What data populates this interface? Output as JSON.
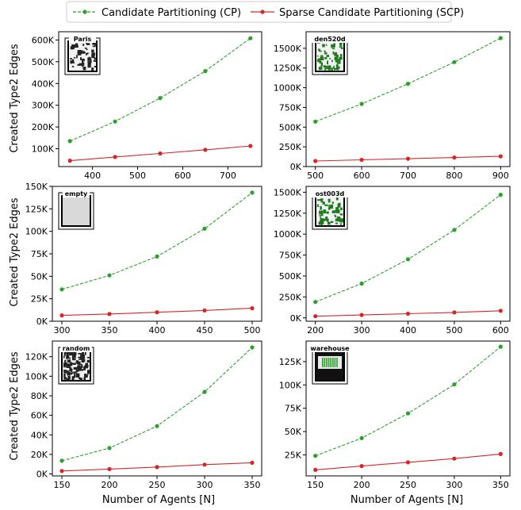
{
  "legend": {
    "placement": "top-center",
    "entries": [
      {
        "label": "Candidate Partitioning (CP)",
        "color": "#2ca02c",
        "style": "dashed"
      },
      {
        "label": "Sparse Candidate Partitioning (SCP)",
        "color": "#d62728",
        "style": "solid"
      }
    ]
  },
  "shared_ylabel": "Created Type2 Edges",
  "shared_xlabel": "Number of Agents [N]",
  "chart_data": [
    {
      "type": "line",
      "map_label": "Paris",
      "x": [
        350,
        450,
        550,
        650,
        750
      ],
      "xticks": [
        400,
        500,
        600,
        700
      ],
      "xlim": [
        325,
        775
      ],
      "yticks": [
        100000,
        200000,
        300000,
        400000,
        500000,
        600000
      ],
      "ytick_labels": [
        "100K",
        "200K",
        "300K",
        "400K",
        "500K",
        "600K"
      ],
      "ylim": [
        18000,
        638000
      ],
      "series": [
        {
          "name": "Candidate Partitioning (CP)",
          "values": [
            135000,
            225000,
            333000,
            457000,
            608000
          ]
        },
        {
          "name": "Sparse Candidate Partitioning (SCP)",
          "values": [
            45000,
            62000,
            78000,
            95000,
            113000
          ]
        }
      ]
    },
    {
      "type": "line",
      "map_label": "den520d",
      "x": [
        500,
        600,
        700,
        800,
        900
      ],
      "xticks": [
        500,
        600,
        700,
        800,
        900
      ],
      "xlim": [
        480,
        920
      ],
      "yticks": [
        0,
        250000,
        500000,
        750000,
        1000000,
        1250000,
        1500000
      ],
      "ytick_labels": [
        "0K",
        "250K",
        "500K",
        "750K",
        "1000K",
        "1250K",
        "1500K"
      ],
      "ylim": [
        0,
        1710000
      ],
      "series": [
        {
          "name": "Candidate Partitioning (CP)",
          "values": [
            570000,
            795000,
            1050000,
            1325000,
            1630000
          ]
        },
        {
          "name": "Sparse Candidate Partitioning (SCP)",
          "values": [
            70000,
            85000,
            100000,
            115000,
            130000
          ]
        }
      ]
    },
    {
      "type": "line",
      "map_label": "empty",
      "x": [
        300,
        350,
        400,
        450,
        500
      ],
      "xticks": [
        300,
        350,
        400,
        450,
        500
      ],
      "xlim": [
        290,
        510
      ],
      "yticks": [
        0,
        25000,
        50000,
        75000,
        100000,
        125000,
        150000
      ],
      "ytick_labels": [
        "0K",
        "25K",
        "50K",
        "75K",
        "100K",
        "125K",
        "150K"
      ],
      "ylim": [
        0,
        150000
      ],
      "series": [
        {
          "name": "Candidate Partitioning (CP)",
          "values": [
            35500,
            51000,
            72000,
            103000,
            143000
          ]
        },
        {
          "name": "Sparse Candidate Partitioning (SCP)",
          "values": [
            6500,
            8000,
            10000,
            12000,
            14500
          ]
        }
      ]
    },
    {
      "type": "line",
      "map_label": "ost003d",
      "x": [
        200,
        300,
        400,
        500,
        600
      ],
      "xticks": [
        200,
        300,
        400,
        500,
        600
      ],
      "xlim": [
        180,
        620
      ],
      "yticks": [
        0,
        250000,
        500000,
        750000,
        1000000,
        1250000,
        1500000
      ],
      "ytick_labels": [
        "0K",
        "250K",
        "500K",
        "750K",
        "1000K",
        "1250K",
        "1500K"
      ],
      "ylim": [
        -40000,
        1570000
      ],
      "series": [
        {
          "name": "Candidate Partitioning (CP)",
          "values": [
            190000,
            410000,
            700000,
            1050000,
            1470000
          ]
        },
        {
          "name": "Sparse Candidate Partitioning (SCP)",
          "values": [
            20000,
            35000,
            50000,
            65000,
            85000
          ]
        }
      ]
    },
    {
      "type": "line",
      "map_label": "random",
      "x": [
        150,
        200,
        250,
        300,
        350
      ],
      "xticks": [
        150,
        200,
        250,
        300,
        350
      ],
      "xlim": [
        140,
        360
      ],
      "yticks": [
        0,
        20000,
        40000,
        60000,
        80000,
        100000,
        120000
      ],
      "ytick_labels": [
        "0K",
        "20K",
        "40K",
        "60K",
        "80K",
        "100K",
        "120K"
      ],
      "ylim": [
        -2000,
        136000
      ],
      "series": [
        {
          "name": "Candidate Partitioning (CP)",
          "values": [
            13500,
            26500,
            49000,
            84000,
            129500
          ]
        },
        {
          "name": "Sparse Candidate Partitioning (SCP)",
          "values": [
            3000,
            5000,
            7000,
            9500,
            11500
          ]
        }
      ]
    },
    {
      "type": "line",
      "map_label": "warehouse",
      "x": [
        150,
        200,
        250,
        300,
        350
      ],
      "xticks": [
        150,
        200,
        250,
        300,
        350
      ],
      "xlim": [
        140,
        360
      ],
      "yticks": [
        25000,
        50000,
        75000,
        100000,
        125000
      ],
      "ytick_labels": [
        "25K",
        "50K",
        "75K",
        "100K",
        "125K"
      ],
      "ylim": [
        2500,
        147000
      ],
      "series": [
        {
          "name": "Candidate Partitioning (CP)",
          "values": [
            24000,
            43000,
            69500,
            100500,
            141000
          ]
        },
        {
          "name": "Sparse Candidate Partitioning (SCP)",
          "values": [
            9000,
            13000,
            17000,
            21000,
            26000
          ]
        }
      ]
    }
  ]
}
